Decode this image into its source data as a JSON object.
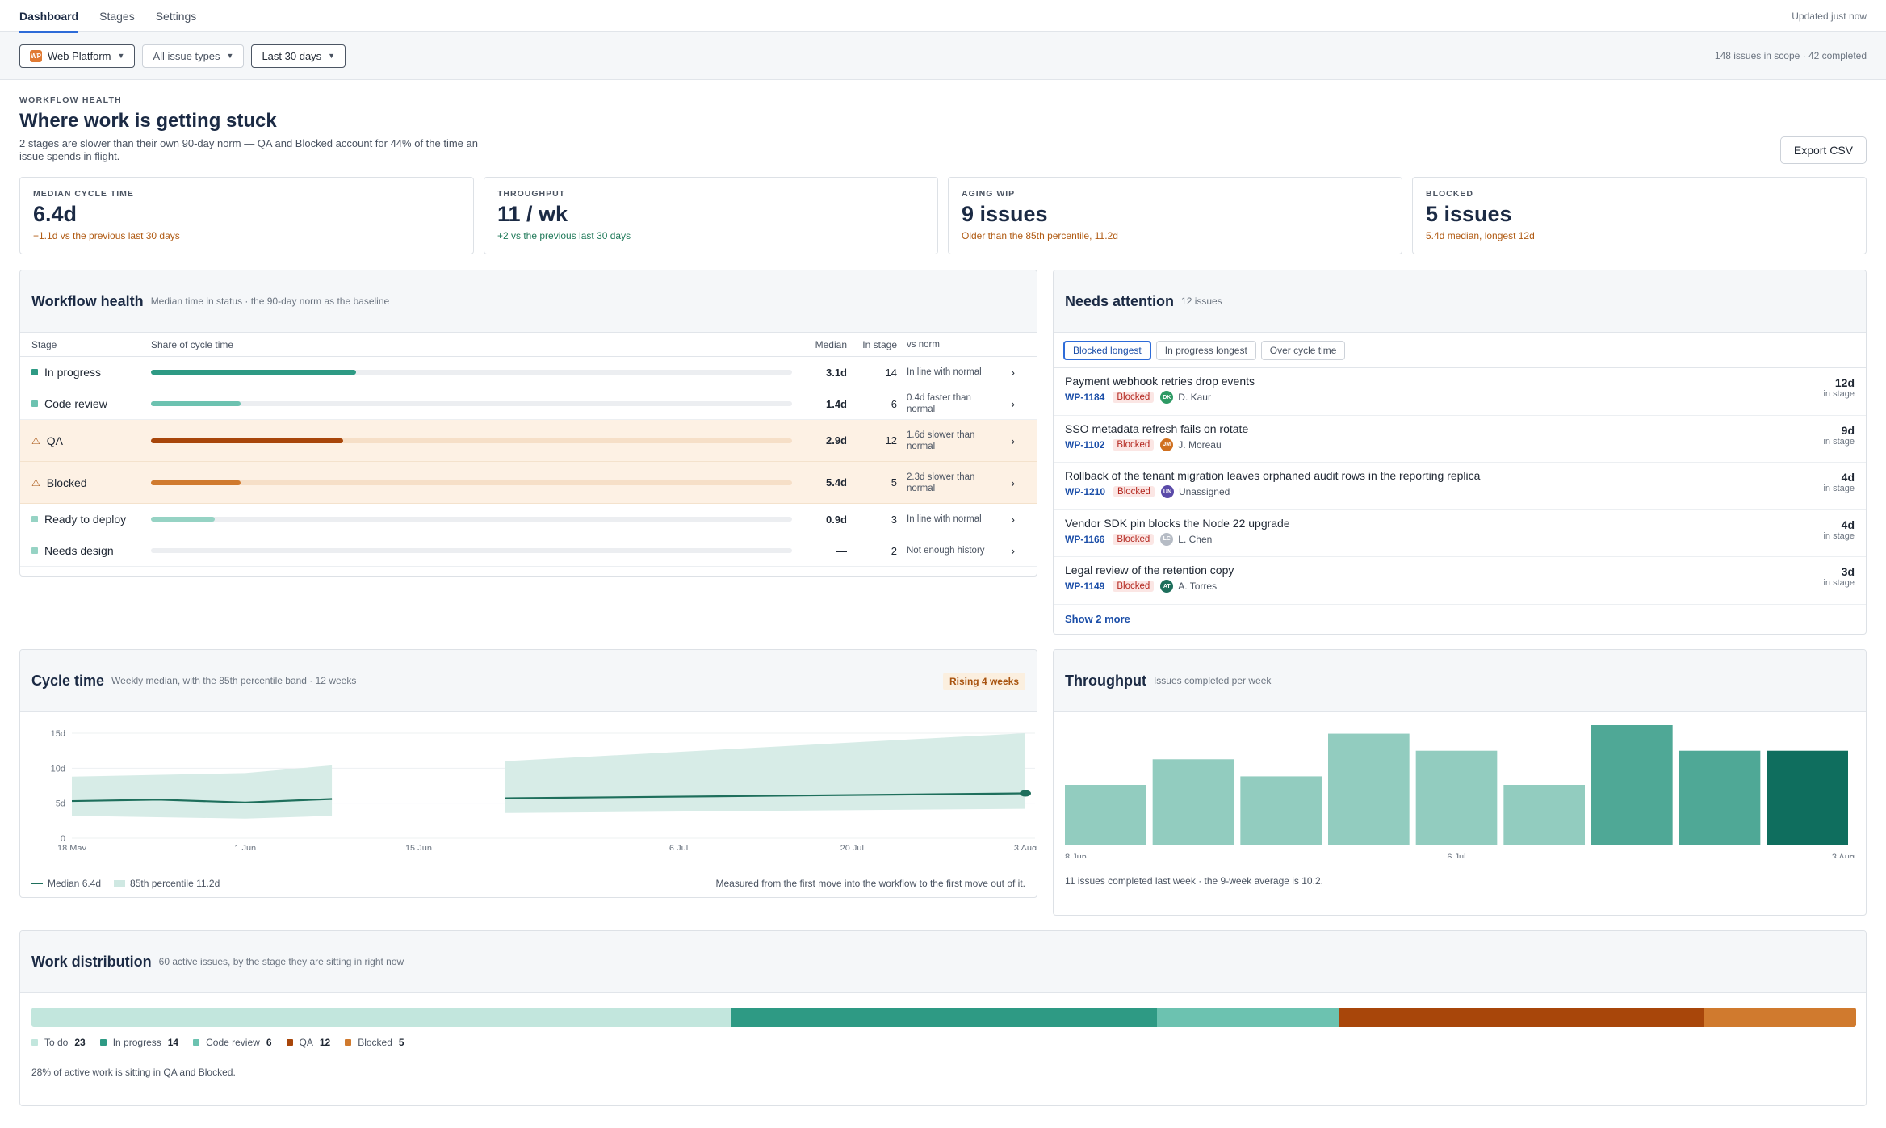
{
  "nav": {
    "tabs": [
      "Dashboard",
      "Stages",
      "Settings"
    ],
    "updated": "Updated just now"
  },
  "filters": {
    "project": "Web Platform",
    "project_initials": "WP",
    "issue_types": "All issue types",
    "range": "Last 30 days",
    "scope": "148 issues in scope · 42 completed"
  },
  "header": {
    "eyebrow": "WORKFLOW HEALTH",
    "title": "Where work is getting stuck",
    "subtitle": "2 stages are slower than their own 90-day norm — QA and Blocked account for 44% of the time an issue spends in flight.",
    "export_label": "Export CSV"
  },
  "kpis": [
    {
      "label": "MEDIAN CYCLE TIME",
      "value": "6.4d",
      "delta": "+1.1d vs the previous last 30 days",
      "tone": "orange"
    },
    {
      "label": "THROUGHPUT",
      "value": "11 / wk",
      "delta": "+2 vs the previous last 30 days",
      "tone": "green"
    },
    {
      "label": "AGING WIP",
      "value": "9 issues",
      "delta": "Older than the 85th percentile, 11.2d",
      "tone": "orange"
    },
    {
      "label": "BLOCKED",
      "value": "5 issues",
      "delta": "5.4d median, longest 12d",
      "tone": "orange"
    }
  ],
  "workflow": {
    "title": "Workflow health",
    "subtitle": "Median time in status · the 90-day norm as the baseline",
    "columns": {
      "stage": "Stage",
      "share": "Share of cycle time",
      "median": "Median",
      "in_stage": "In stage",
      "norm": "vs norm"
    },
    "rows": [
      {
        "stage": "In progress",
        "share": 0.32,
        "median": "3.1d",
        "in_stage": "14",
        "norm": "In line with normal",
        "warn": false,
        "color": "#2e9a84"
      },
      {
        "stage": "Code review",
        "share": 0.14,
        "median": "1.4d",
        "in_stage": "6",
        "norm": "0.4d faster than normal",
        "warn": false,
        "color": "#6cc2b0"
      },
      {
        "stage": "QA",
        "share": 0.3,
        "median": "2.9d",
        "in_stage": "12",
        "norm": "1.6d slower than normal",
        "warn": true,
        "color": "#a8460a"
      },
      {
        "stage": "Blocked",
        "share": 0.14,
        "median": "5.4d",
        "in_stage": "5",
        "norm": "2.3d slower than normal",
        "warn": true,
        "color": "#d07a2e"
      },
      {
        "stage": "Ready to deploy",
        "share": 0.1,
        "median": "0.9d",
        "in_stage": "3",
        "norm": "In line with normal",
        "warn": false,
        "color": "#96d3c4"
      },
      {
        "stage": "Needs design",
        "share": 0,
        "median": "—",
        "in_stage": "2",
        "norm": "Not enough history",
        "warn": false,
        "color": "#96d3c4"
      }
    ]
  },
  "attention": {
    "title": "Needs attention",
    "count": "12 issues",
    "tabs": [
      "Blocked longest",
      "In progress longest",
      "Over cycle time"
    ],
    "items": [
      {
        "title": "Payment webhook retries drop events",
        "key": "WP-1184",
        "status": "Blocked",
        "initials": "DK",
        "avatar_color": "#2e9a64",
        "assignee": "D. Kaur",
        "days": "12d"
      },
      {
        "title": "SSO metadata refresh fails on rotate",
        "key": "WP-1102",
        "status": "Blocked",
        "initials": "JM",
        "avatar_color": "#d0701f",
        "assignee": "J. Moreau",
        "days": "9d"
      },
      {
        "title": "Rollback of the tenant migration leaves orphaned audit rows in the reporting replica",
        "key": "WP-1210",
        "status": "Blocked",
        "initials": "UN",
        "avatar_color": "#5a4aa8",
        "assignee": "Unassigned",
        "days": "4d"
      },
      {
        "title": "Vendor SDK pin blocks the Node 22 upgrade",
        "key": "WP-1166",
        "status": "Blocked",
        "initials": "LC",
        "avatar_color": "#b6bcc5",
        "assignee": "L. Chen",
        "days": "4d"
      },
      {
        "title": "Legal review of the retention copy",
        "key": "WP-1149",
        "status": "Blocked",
        "initials": "AT",
        "avatar_color": "#1e6f5c",
        "assignee": "A. Torres",
        "days": "3d"
      }
    ],
    "in_stage_label": "in stage",
    "show_more": "Show 2 more"
  },
  "cycle": {
    "title": "Cycle time",
    "subtitle": "Weekly median, with the 85th percentile band · 12 weeks",
    "badge": "Rising 4 weeks",
    "legend_median": "Median 6.4d",
    "legend_band": "85th percentile 11.2d",
    "note": "Measured from the first move into the workflow to the first move out of it."
  },
  "throughput": {
    "title": "Throughput",
    "subtitle": "Issues completed per week",
    "note": "11 issues completed last week · the 9-week average is 10.2."
  },
  "distribution": {
    "title": "Work distribution",
    "subtitle": "60 active issues, by the stage they are sitting in right now",
    "segments": [
      {
        "label": "To do",
        "count": 23,
        "color": "#c2e6dd"
      },
      {
        "label": "In progress",
        "count": 14,
        "color": "#2e9a84"
      },
      {
        "label": "Code review",
        "count": 6,
        "color": "#6cc2b0"
      },
      {
        "label": "QA",
        "count": 12,
        "color": "#a8460a"
      },
      {
        "label": "Blocked",
        "count": 5,
        "color": "#d07a2e"
      }
    ],
    "note": "28% of active work is sitting in QA and Blocked."
  },
  "chart_data": [
    {
      "type": "line",
      "title": "Cycle time",
      "y_unit": "d",
      "ylim": [
        0,
        15
      ],
      "y_ticks": [
        "0",
        "5d",
        "10d",
        "15d"
      ],
      "x_tick_labels": [
        "18 May",
        "1 Jun",
        "15 Jun",
        "6 Jul",
        "20 Jul",
        "3 Aug"
      ],
      "series": [
        {
          "name": "Median 6.4d",
          "segments": [
            {
              "x": [
                "18 May",
                "25 May",
                "1 Jun",
                "8 Jun"
              ],
              "y": [
                5.3,
                5.5,
                5.1,
                5.6
              ]
            },
            {
              "x": [
                "22 Jun",
                "3 Aug"
              ],
              "y": [
                5.7,
                6.4
              ]
            }
          ]
        },
        {
          "name": "85th percentile 11.2d",
          "kind": "band",
          "segments": [
            {
              "x": [
                "18 May",
                "1 Jun",
                "8 Jun"
              ],
              "low": [
                3.2,
                2.8,
                3.2
              ],
              "high": [
                8.8,
                9.3,
                10.4
              ]
            },
            {
              "x": [
                "22 Jun",
                "3 Aug"
              ],
              "low": [
                3.6,
                4.2
              ],
              "high": [
                11.0,
                15.0
              ]
            }
          ]
        }
      ],
      "grid": true
    },
    {
      "type": "bar",
      "title": "Throughput",
      "x_tick_labels": [
        "8 Jun",
        "6 Jul",
        "3 Aug"
      ],
      "categories": [
        "8 Jun",
        "15 Jun",
        "22 Jun",
        "29 Jun",
        "6 Jul",
        "13 Jul",
        "20 Jul",
        "27 Jul",
        "3 Aug"
      ],
      "values": [
        7,
        10,
        8,
        13,
        11,
        7,
        14,
        11,
        11
      ],
      "ylim": [
        0,
        14
      ]
    }
  ]
}
